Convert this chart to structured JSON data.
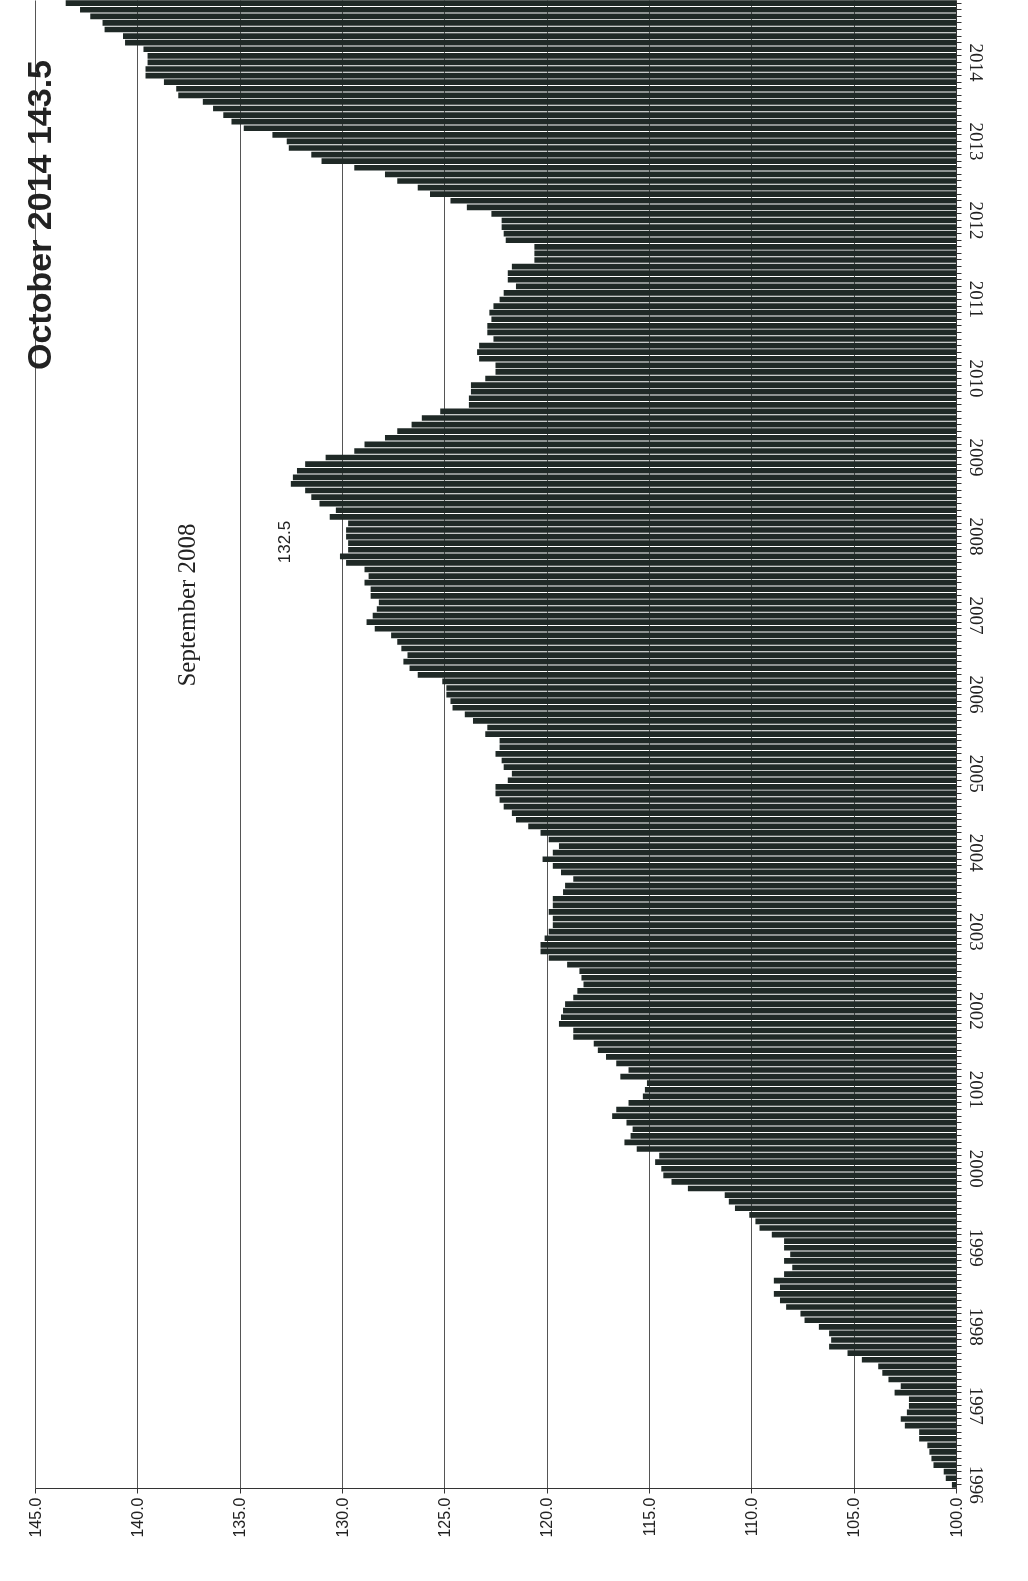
{
  "chart_data": {
    "type": "bar",
    "orientation": "horizontal",
    "title": "October 2014 143.5",
    "annotations": [
      "September 2008",
      "132.5"
    ],
    "color": "#1f2926",
    "grid": "x",
    "xlim": [
      145,
      100
    ],
    "xticks": [
      {
        "value": 145,
        "label": "145.0"
      },
      {
        "value": 140,
        "label": "140.0"
      },
      {
        "value": 135,
        "label": "135.0"
      },
      {
        "value": 130,
        "label": "130.0"
      },
      {
        "value": 125,
        "label": "125.0"
      },
      {
        "value": 120,
        "label": "120.0"
      },
      {
        "value": 115,
        "label": "115.0"
      },
      {
        "value": 110,
        "label": "110.0"
      },
      {
        "value": 105,
        "label": "105.0"
      },
      {
        "value": 100,
        "label": "100.0"
      }
    ],
    "categories": [
      null,
      null,
      null,
      null,
      null,
      null,
      null,
      null,
      null,
      "2014",
      null,
      null,
      null,
      null,
      null,
      null,
      null,
      null,
      null,
      null,
      null,
      "2013",
      null,
      null,
      null,
      null,
      null,
      null,
      null,
      null,
      null,
      null,
      null,
      "2012",
      null,
      null,
      null,
      null,
      null,
      null,
      null,
      null,
      null,
      null,
      null,
      "2011",
      null,
      null,
      null,
      null,
      null,
      null,
      null,
      null,
      null,
      null,
      null,
      "2010",
      null,
      null,
      null,
      null,
      null,
      null,
      null,
      null,
      null,
      null,
      null,
      "2009",
      null,
      null,
      null,
      null,
      null,
      null,
      null,
      null,
      null,
      null,
      null,
      "2008",
      null,
      null,
      null,
      null,
      null,
      null,
      null,
      null,
      null,
      null,
      null,
      "2007",
      null,
      null,
      null,
      null,
      null,
      null,
      null,
      null,
      null,
      null,
      null,
      "2006",
      null,
      null,
      null,
      null,
      null,
      null,
      null,
      null,
      null,
      null,
      null,
      "2005",
      null,
      null,
      null,
      null,
      null,
      null,
      null,
      null,
      null,
      null,
      null,
      "2004",
      null,
      null,
      null,
      null,
      null,
      null,
      null,
      null,
      null,
      null,
      null,
      "2003",
      null,
      null,
      null,
      null,
      null,
      null,
      null,
      null,
      null,
      null,
      null,
      "2002",
      null,
      null,
      null,
      null,
      null,
      null,
      null,
      null,
      null,
      null,
      null,
      "2001",
      null,
      null,
      null,
      null,
      null,
      null,
      null,
      null,
      null,
      null,
      null,
      "2000",
      null,
      null,
      null,
      null,
      null,
      null,
      null,
      null,
      null,
      null,
      null,
      "1999",
      null,
      null,
      null,
      null,
      null,
      null,
      null,
      null,
      null,
      null,
      null,
      "1998",
      null,
      null,
      null,
      null,
      null,
      null,
      null,
      null,
      null,
      null,
      null,
      "1997",
      null,
      null,
      null,
      null,
      null,
      null,
      null,
      null,
      null,
      null,
      null,
      "1996"
    ],
    "values": [
      143.5,
      142.8,
      142.3,
      141.7,
      141.6,
      140.7,
      140.6,
      139.7,
      139.5,
      139.5,
      139.6,
      139.6,
      138.7,
      138.1,
      138.0,
      136.8,
      136.3,
      135.8,
      135.4,
      134.8,
      133.4,
      132.7,
      132.6,
      131.5,
      131.0,
      129.4,
      127.9,
      127.3,
      126.3,
      125.7,
      124.7,
      123.9,
      122.7,
      122.2,
      122.2,
      122.1,
      122.0,
      120.6,
      120.6,
      120.6,
      121.7,
      121.9,
      121.9,
      121.5,
      122.1,
      122.3,
      122.6,
      122.8,
      122.7,
      122.9,
      122.9,
      122.6,
      123.3,
      123.4,
      123.3,
      122.5,
      122.5,
      123.0,
      123.7,
      123.7,
      123.8,
      123.8,
      125.2,
      126.1,
      126.6,
      127.3,
      127.9,
      128.9,
      129.4,
      130.8,
      131.8,
      132.2,
      132.4,
      132.5,
      131.8,
      131.5,
      131.1,
      130.3,
      130.6,
      129.7,
      129.8,
      129.8,
      129.7,
      129.7,
      130.1,
      129.8,
      128.9,
      128.7,
      128.9,
      128.6,
      128.6,
      128.2,
      128.3,
      128.5,
      128.8,
      128.4,
      127.6,
      127.3,
      127.1,
      126.8,
      127.0,
      126.7,
      126.3,
      125.1,
      124.9,
      124.9,
      124.7,
      124.6,
      124.0,
      123.6,
      122.9,
      123.0,
      122.3,
      122.3,
      122.5,
      122.2,
      122.1,
      121.7,
      121.9,
      122.5,
      122.5,
      122.3,
      122.1,
      121.7,
      121.5,
      120.9,
      120.3,
      119.9,
      119.4,
      119.7,
      120.2,
      119.7,
      119.3,
      118.7,
      119.1,
      119.2,
      119.7,
      119.7,
      119.9,
      119.7,
      119.7,
      119.9,
      120.1,
      120.3,
      120.3,
      119.9,
      119.0,
      118.4,
      118.3,
      118.2,
      118.5,
      118.7,
      119.1,
      119.2,
      119.3,
      119.4,
      118.7,
      118.7,
      117.7,
      117.5,
      117.1,
      116.6,
      116.0,
      116.4,
      115.1,
      115.2,
      115.3,
      116.0,
      116.6,
      116.8,
      116.1,
      115.8,
      115.9,
      116.2,
      115.6,
      114.5,
      114.7,
      114.4,
      114.3,
      113.9,
      113.1,
      111.3,
      111.1,
      110.8,
      110.1,
      109.8,
      109.6,
      109.0,
      108.4,
      108.4,
      108.1,
      108.4,
      108.0,
      108.4,
      108.9,
      108.6,
      108.9,
      108.6,
      108.3,
      107.6,
      107.4,
      106.7,
      106.2,
      106.1,
      106.2,
      105.3,
      104.6,
      103.8,
      103.6,
      103.3,
      102.7,
      103.0,
      102.3,
      102.3,
      102.4,
      102.7,
      102.5,
      101.8,
      101.8,
      101.4,
      101.3,
      101.2,
      101.1,
      100.6,
      100.5,
      100.2
    ]
  }
}
